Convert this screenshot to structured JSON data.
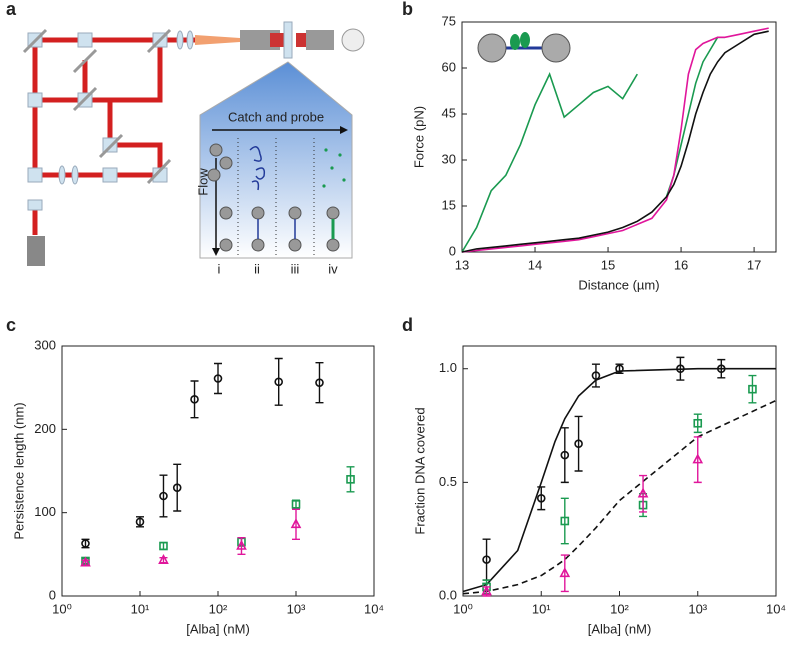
{
  "panel_labels": [
    "a",
    "b",
    "c",
    "d"
  ],
  "diagram": {
    "caption": "Catch and probe",
    "flow": "Flow",
    "steps": [
      "i",
      "ii",
      "iii",
      "iv"
    ]
  },
  "chart_data": [
    {
      "type": "line",
      "xlabel": "Distance (µm)",
      "ylabel": "Force (pN)",
      "x": [
        13.0,
        13.2,
        13.4,
        13.6,
        13.8,
        14.0,
        14.2,
        14.4,
        14.6,
        14.8,
        15.0,
        15.2,
        15.4,
        15.6,
        15.8,
        15.9,
        16.0,
        16.1,
        16.2,
        16.3,
        16.4,
        16.5,
        16.6,
        16.8,
        17.0,
        17.2
      ],
      "xlim": [
        13,
        17.3
      ],
      "xticks": [
        13,
        14,
        15,
        16,
        17
      ],
      "ylim": [
        0,
        75
      ],
      "yticks": [
        0,
        15,
        30,
        45,
        60,
        75
      ],
      "series": [
        {
          "color": "#1a9a50",
          "values": [
            0,
            8,
            20,
            25,
            35,
            48,
            58,
            44,
            48,
            52,
            54,
            50,
            58,
            null,
            18,
            25,
            35,
            45,
            55,
            62,
            66,
            70,
            70,
            null,
            null,
            null
          ]
        },
        {
          "color": "#e0169b",
          "values": [
            0,
            0.5,
            1,
            1.5,
            2,
            2.5,
            3,
            3.5,
            4,
            5,
            6,
            7,
            9,
            11,
            17,
            25,
            40,
            58,
            66,
            68,
            69,
            70,
            70,
            71,
            72,
            73
          ]
        },
        {
          "color": "#111111",
          "values": [
            0,
            1,
            1.5,
            2,
            2.5,
            3,
            3.5,
            4,
            4.5,
            5.5,
            6.5,
            8,
            10,
            13,
            18,
            22,
            28,
            36,
            45,
            52,
            58,
            62,
            65,
            68,
            71,
            72
          ]
        }
      ]
    },
    {
      "type": "scatter",
      "xlabel": "[Alba] (nM)",
      "ylabel": "Persistence length (nm)",
      "xlog": true,
      "xlim": [
        1,
        10000
      ],
      "xticks": [
        {
          "value": 1,
          "label": "10⁰"
        },
        {
          "value": 10,
          "label": "10¹"
        },
        {
          "value": 100,
          "label": "10²"
        },
        {
          "value": 1000,
          "label": "10³"
        },
        {
          "value": 10000,
          "label": "10⁴"
        }
      ],
      "ylim": [
        0,
        300
      ],
      "yticks": [
        0,
        100,
        200,
        300
      ],
      "series": [
        {
          "color": "#111111",
          "marker": "circle",
          "x": [
            2,
            10,
            20,
            30,
            50,
            100,
            600,
            2000
          ],
          "values": [
            63,
            89,
            120,
            130,
            236,
            261,
            257,
            256
          ],
          "errors": [
            5,
            6,
            25,
            28,
            22,
            18,
            28,
            24
          ]
        },
        {
          "color": "#1a9a50",
          "marker": "square",
          "x": [
            2,
            20,
            200,
            1000,
            5000
          ],
          "values": [
            42,
            60,
            65,
            110,
            140
          ],
          "errors": [
            3,
            4,
            5,
            5,
            15
          ]
        },
        {
          "color": "#e0169b",
          "marker": "triangle",
          "x": [
            2,
            20,
            200,
            1000
          ],
          "values": [
            40,
            43,
            60,
            86
          ],
          "errors": [
            3,
            3,
            10,
            18
          ]
        }
      ]
    },
    {
      "type": "scatter",
      "xlabel": "[Alba] (nM)",
      "ylabel": "Fraction DNA covered",
      "xlog": true,
      "xlim": [
        1,
        10000
      ],
      "xticks": [
        {
          "value": 1,
          "label": "10⁰"
        },
        {
          "value": 10,
          "label": "10¹"
        },
        {
          "value": 100,
          "label": "10²"
        },
        {
          "value": 1000,
          "label": "10³"
        },
        {
          "value": 10000,
          "label": "10⁴"
        }
      ],
      "ylim": [
        0,
        1.1
      ],
      "yticks": [
        {
          "value": 0,
          "label": "0.0"
        },
        0.5,
        {
          "value": 1,
          "label": "1.0"
        }
      ],
      "series": [
        {
          "color": "#111111",
          "marker": "circle",
          "x": [
            2,
            10,
            20,
            30,
            50,
            100,
            600,
            2000
          ],
          "values": [
            0.16,
            0.43,
            0.62,
            0.67,
            0.97,
            1.0,
            1.0,
            1.0
          ],
          "errors": [
            0.09,
            0.05,
            0.12,
            0.12,
            0.05,
            0.02,
            0.05,
            0.04
          ]
        },
        {
          "color": "#1a9a50",
          "marker": "square",
          "x": [
            2,
            20,
            200,
            1000,
            5000
          ],
          "values": [
            0.04,
            0.33,
            0.4,
            0.76,
            0.91
          ],
          "errors": [
            0.03,
            0.1,
            0.05,
            0.04,
            0.06
          ]
        },
        {
          "color": "#e0169b",
          "marker": "triangle",
          "x": [
            2,
            20,
            200,
            1000
          ],
          "values": [
            0.02,
            0.1,
            0.45,
            0.6
          ],
          "errors": [
            0.02,
            0.08,
            0.08,
            0.1
          ]
        }
      ],
      "fits": [
        {
          "color": "#111111",
          "dashed": false,
          "x": [
            1,
            2,
            5,
            10,
            15,
            20,
            30,
            50,
            100,
            1000,
            10000
          ],
          "values": [
            0.02,
            0.05,
            0.2,
            0.5,
            0.68,
            0.78,
            0.88,
            0.95,
            0.99,
            1.0,
            1.0
          ]
        },
        {
          "color": "#111111",
          "dashed": true,
          "x": [
            1,
            2,
            5,
            10,
            15,
            20,
            30,
            50,
            100,
            1000,
            10000
          ],
          "values": [
            0.01,
            0.02,
            0.05,
            0.09,
            0.13,
            0.16,
            0.22,
            0.3,
            0.42,
            0.7,
            0.86
          ]
        }
      ]
    }
  ]
}
